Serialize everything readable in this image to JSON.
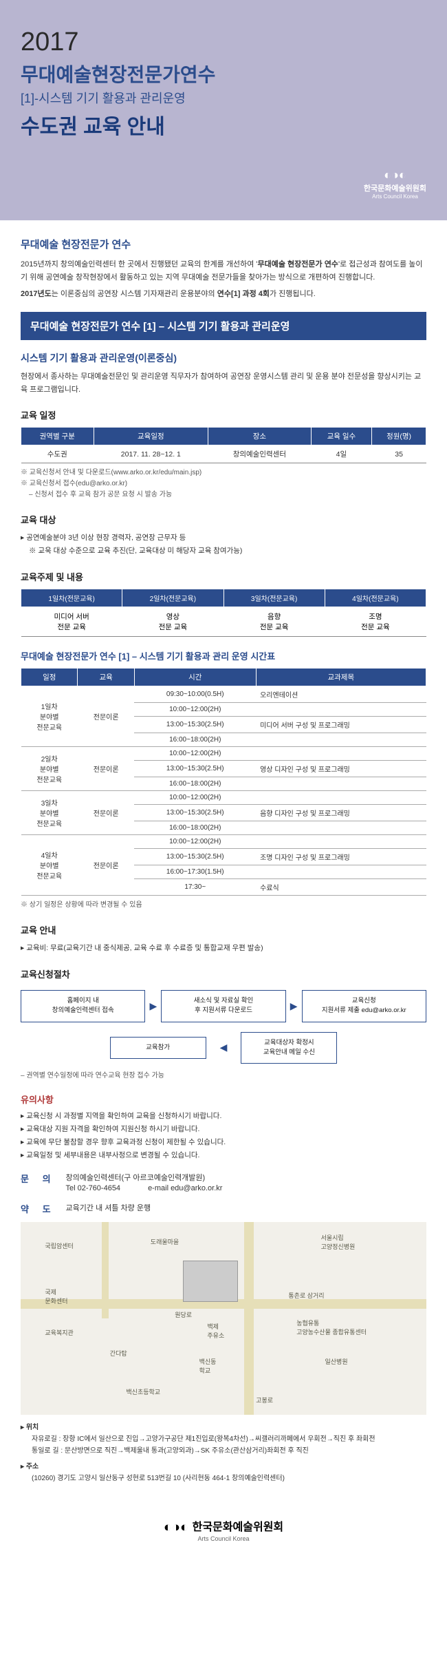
{
  "header": {
    "year": "2017",
    "title_main": "무대예술현장전문가연수",
    "title_sub": "[1]-시스템 기기 활용과 관리운영",
    "title_bold": "수도권 교육 안내",
    "logo_kor": "한국문화예술위원회",
    "logo_eng": "Arts Council Korea"
  },
  "intro": {
    "heading": "무대예술 현장전문가 연수",
    "p1a": "2015년까지 창의예술인력센터 한 곳에서 진행됐던 교육의 한계를 개선하여 '",
    "p1b": "무대예술 현장전문가 연수",
    "p1c": "'로 접근성과 참여도를 높이기 위해 공연예술 창작현장에서 활동하고 있는 지역 무대예술 전문가들을 찾아가는 방식으로 개편하여 진행합니다.",
    "p2a": "2017년도",
    "p2b": "는 이론중심의 공연장 시스템 기자재관리 운용분야의 ",
    "p2c": "연수[1] 과정 4회",
    "p2d": "가 진행됩니다."
  },
  "banner": "무대예술 현장전문가 연수 [1] – 시스템 기기 활용과 관리운영",
  "theory": {
    "heading": "시스템 기기 활용과 관리운영(이론중심)",
    "body": "현장에서 종사하는 무대예술전문인 및 관리운영 직무자가 참여하여 공연장 운영시스템 관리 및 운용 분야 전문성을 향상시키는 교육 프로그램입니다."
  },
  "schedule1": {
    "heading": "교육 일정",
    "cols": [
      "권역별 구분",
      "교육일정",
      "장소",
      "교육 일수",
      "정원(명)"
    ],
    "row": [
      "수도권",
      "2017. 11. 28~12. 1",
      "창의예술인력센터",
      "4일",
      "35"
    ],
    "notes": [
      "※ 교육신청서 안내 및 다운로드(www.arko.or.kr/edu/main.jsp)",
      "※ 교육신청서 접수(edu@arko.or.kr)",
      "– 신청서 접수 후 교육 참가 공문 요청 시 발송 가능"
    ]
  },
  "target": {
    "heading": "교육 대상",
    "items": [
      "공연예술분야 3년 이상 현장 경력자, 공연장 근무자 등",
      "※ 교욱 대상 수준으로 교육 추진(단, 교육대상 미 해당자 교육 참여가능)"
    ]
  },
  "topics": {
    "heading": "교육주제 및 내용",
    "cols": [
      "1일차(전문교육)",
      "2일차(전문교육)",
      "3일차(전문교육)",
      "4일차(전문교육)"
    ],
    "row": [
      "미디어 서버\n전문 교육",
      "영상\n전문 교육",
      "음향\n전문 교육",
      "조명\n전문 교육"
    ]
  },
  "timetable": {
    "heading": "무대예술 현장전문가 연수 [1] – 시스템 기기 활용과 관리 운영 시간표",
    "cols": [
      "일정",
      "교육",
      "시간",
      "교과제목"
    ],
    "days": [
      {
        "label": "1일차\n분야별\n전문교육",
        "edu": "전문이론",
        "rows": [
          {
            "time": "09:30~10:00(0.5H)",
            "subj": "오리엔테이션"
          },
          {
            "time": "10:00~12:00(2H)",
            "subj": ""
          },
          {
            "time": "13:00~15:30(2.5H)",
            "subj": "미디어 서버 구성 및 프로그래밍"
          },
          {
            "time": "16:00~18:00(2H)",
            "subj": ""
          }
        ]
      },
      {
        "label": "2일차\n분야별\n전문교육",
        "edu": "전문이론",
        "rows": [
          {
            "time": "10:00~12:00(2H)",
            "subj": ""
          },
          {
            "time": "13:00~15:30(2.5H)",
            "subj": "영상 디자인 구성 및 프로그래밍"
          },
          {
            "time": "16:00~18:00(2H)",
            "subj": ""
          }
        ]
      },
      {
        "label": "3일차\n분야별\n전문교육",
        "edu": "전문이론",
        "rows": [
          {
            "time": "10:00~12:00(2H)",
            "subj": ""
          },
          {
            "time": "13:00~15:30(2.5H)",
            "subj": "음향 디자인 구성 및 프로그래밍"
          },
          {
            "time": "16:00~18:00(2H)",
            "subj": ""
          }
        ]
      },
      {
        "label": "4일차\n분야별\n전문교육",
        "edu": "전문이론",
        "rows": [
          {
            "time": "10:00~12:00(2H)",
            "subj": ""
          },
          {
            "time": "13:00~15:30(2.5H)",
            "subj": "조명 디자인 구성 및 프로그래밍"
          },
          {
            "time": "16:00~17:30(1.5H)",
            "subj": ""
          },
          {
            "time": "17:30~",
            "subj": "수료식"
          }
        ]
      }
    ],
    "note": "※ 상기 일정은 상황에 따라 변경될 수 있음"
  },
  "info": {
    "heading": "교육 안내",
    "fee": "교육비: 무료(교육기간 내 중식제공, 교육 수료 후 수료증 및 통합교재 우편 발송)"
  },
  "apply": {
    "heading": "교육신청절차",
    "boxes": [
      "홈페이지 내\n창의예술인력센터 접속",
      "새소식 및 자료실 확인\n후 지원서류 다운로드",
      "교육신청\n지원서류 제출 edu@arko.or.kr"
    ],
    "boxes2": [
      "교육참가",
      "교육대상자 확정시\n교육안내 메일 수신"
    ],
    "note": "– 권역별 연수일정에 따라 연수교육 현장 접수 가능"
  },
  "warn": {
    "heading": "유의사항",
    "items": [
      "교육신청 시 과정별 지역을 확인하여 교육을 신청하시기 바랍니다.",
      "교육대상 지원 자격을 확인하여 지원신청 하시기 바랍니다.",
      "교육에 무단 불참할 경우 향후 교육과정 신청이 제한될 수 있습니다.",
      "교육일정 및 세부내용은 내부사정으로 변경될 수 있습니다."
    ]
  },
  "contact": {
    "inquiry_label": "문 의",
    "inquiry_body": "창의예술인력센터(구 아르코예술인력개발원)",
    "tel": "Tel 02-760-4654",
    "email": "e-mail edu@arko.or.kr",
    "route_label": "약 도",
    "route_body": "교육기간 내 셔틀 차량 운행"
  },
  "map": {
    "labels": [
      "국립암센터",
      "국제\n문화센터",
      "교육복지관",
      "도래울마을",
      "서울시립\n고양정신병원",
      "통촌로 삼거리",
      "농협유통\n고양농수산물 종합유통센터",
      "일산병원",
      "원당로",
      "고봉로",
      "백제\n주유소",
      "백신동\n학교",
      "간다탑",
      "백신초등학교"
    ]
  },
  "location": {
    "loc_label": "위치",
    "loc_body": "자유로길 : 장항 IC에서 일산으로 진입→고양가구공단 제1진입로(왕복4차선)→씨갤러리까페에서 우회전→직진 후 좌회전",
    "loc_body2": "통일로 길 : 문산방면으로 직진→백제울내 통과(고양외과)→SK 주유소(관산삼거리)좌회전 후 직진",
    "addr_label": "주소",
    "addr_body": "(10260) 경기도 고양시 일산동구 성현로 513번길 10 (사리현동 464-1 창의예술인력센터)"
  },
  "footer": {
    "kor": "한국문화예술위원회",
    "eng": "Arts Council Korea"
  }
}
